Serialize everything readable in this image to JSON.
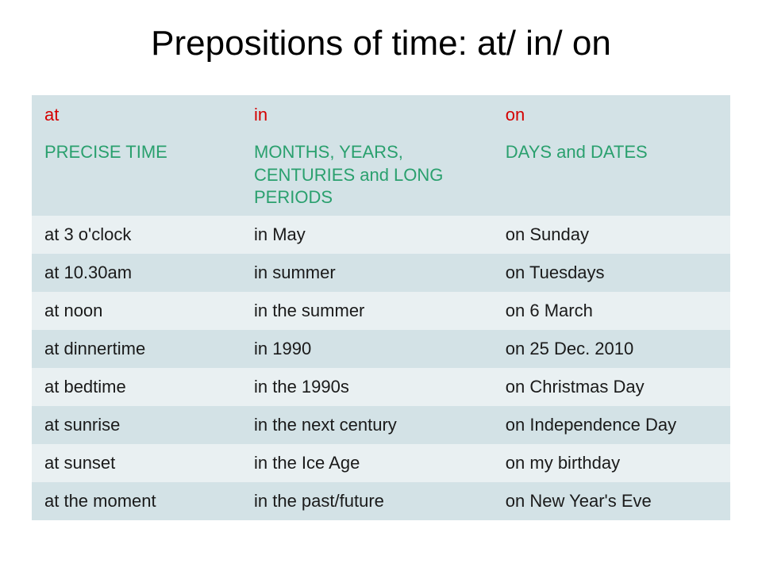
{
  "title": "Prepositions of time: at/ in/ on",
  "table": {
    "background_even": "#d3e2e6",
    "background_odd": "#e9f0f2",
    "text_color": "#1a1a1a",
    "header_color": "#d40000",
    "sub_color": "#2aa06e",
    "columns": [
      {
        "prep": "at",
        "sub": "PRECISE TIME"
      },
      {
        "prep": "in",
        "sub": "MONTHS, YEARS, CENTURIES and LONG PERIODS"
      },
      {
        "prep": "on",
        "sub": "DAYS and DATES"
      }
    ],
    "rows": [
      [
        "at 3 o'clock",
        "in May",
        "on Sunday"
      ],
      [
        "at 10.30am",
        "in summer",
        "on Tuesdays"
      ],
      [
        "at noon",
        "in the summer",
        "on 6 March"
      ],
      [
        "at dinnertime",
        "in 1990",
        "on 25 Dec. 2010"
      ],
      [
        "at bedtime",
        "in the 1990s",
        "on Christmas Day"
      ],
      [
        "at sunrise",
        "in the next century",
        "on Independence Day"
      ],
      [
        "at sunset",
        "in the Ice Age",
        "on my birthday"
      ],
      [
        "at the moment",
        "in the past/future",
        "on New Year's Eve"
      ]
    ]
  }
}
